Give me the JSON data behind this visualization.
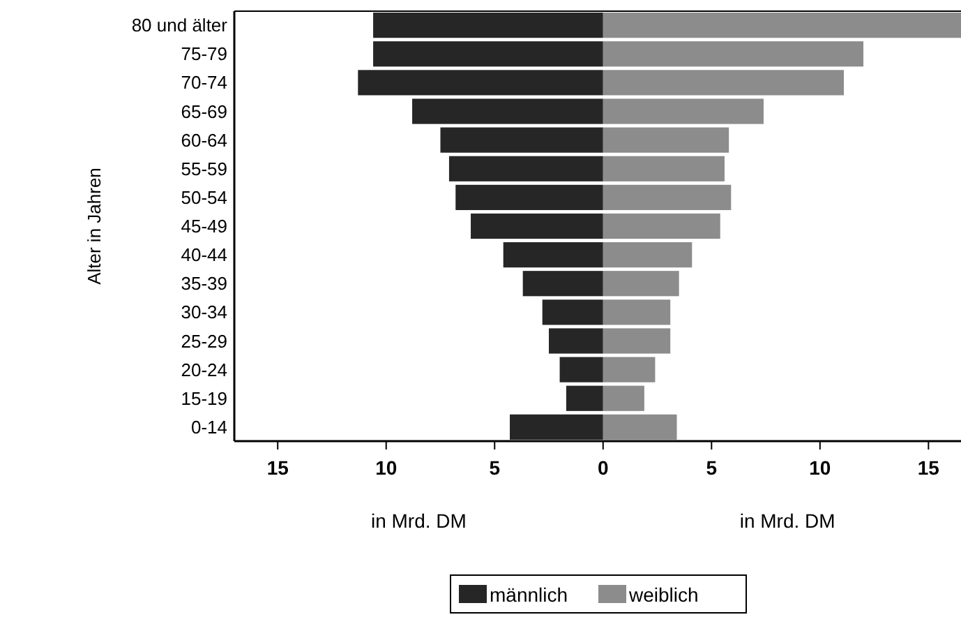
{
  "chart_data": {
    "type": "bar",
    "orientation": "horizontal",
    "ylabel": "Alter in Jahren",
    "annotations": [
      "in Mrd. DM",
      "in Mrd. DM"
    ],
    "categories": [
      "80 und älter",
      "75-79",
      "70-74",
      "65-69",
      "60-64",
      "55-59",
      "50-54",
      "45-49",
      "40-44",
      "35-39",
      "30-34",
      "25-29",
      "20-24",
      "15-19",
      "0-14"
    ],
    "series": [
      {
        "name": "männlich",
        "color": "#262626",
        "values": [
          -10.6,
          -10.6,
          -11.3,
          -8.8,
          -7.5,
          -7.1,
          -6.8,
          -6.1,
          -4.6,
          -3.7,
          -2.8,
          -2.5,
          -2.0,
          -1.7,
          -4.3
        ]
      },
      {
        "name": "weiblich",
        "color": "#8c8c8c",
        "values": [
          16.5,
          12.0,
          11.1,
          7.4,
          5.8,
          5.6,
          5.9,
          5.4,
          4.1,
          3.5,
          3.1,
          3.1,
          2.4,
          1.9,
          3.4
        ]
      }
    ],
    "xlim": [
      -17,
      16.5
    ],
    "xticks": [
      {
        "value": -15,
        "label": "15"
      },
      {
        "value": -10,
        "label": "10"
      },
      {
        "value": -5,
        "label": "5"
      },
      0,
      5,
      10,
      15
    ],
    "legend": "bottom",
    "stacked": true
  }
}
